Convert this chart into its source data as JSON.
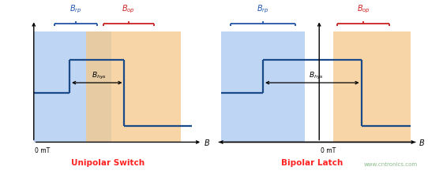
{
  "bg_color": "#ffffff",
  "blue_fill": "#a8c8f0",
  "orange_fill": "#f5c888",
  "line_color": "#1a4a8a",
  "blue_bracket_color": "#2255aa",
  "red_bracket_color": "#cc2222",
  "title_color": "#ff2222",
  "watermark_color": "#88bb88",
  "unipolar_title": "Unipolar Switch",
  "bipolar_title": "Bipolar Latch",
  "watermark": "www.cntronics.com"
}
